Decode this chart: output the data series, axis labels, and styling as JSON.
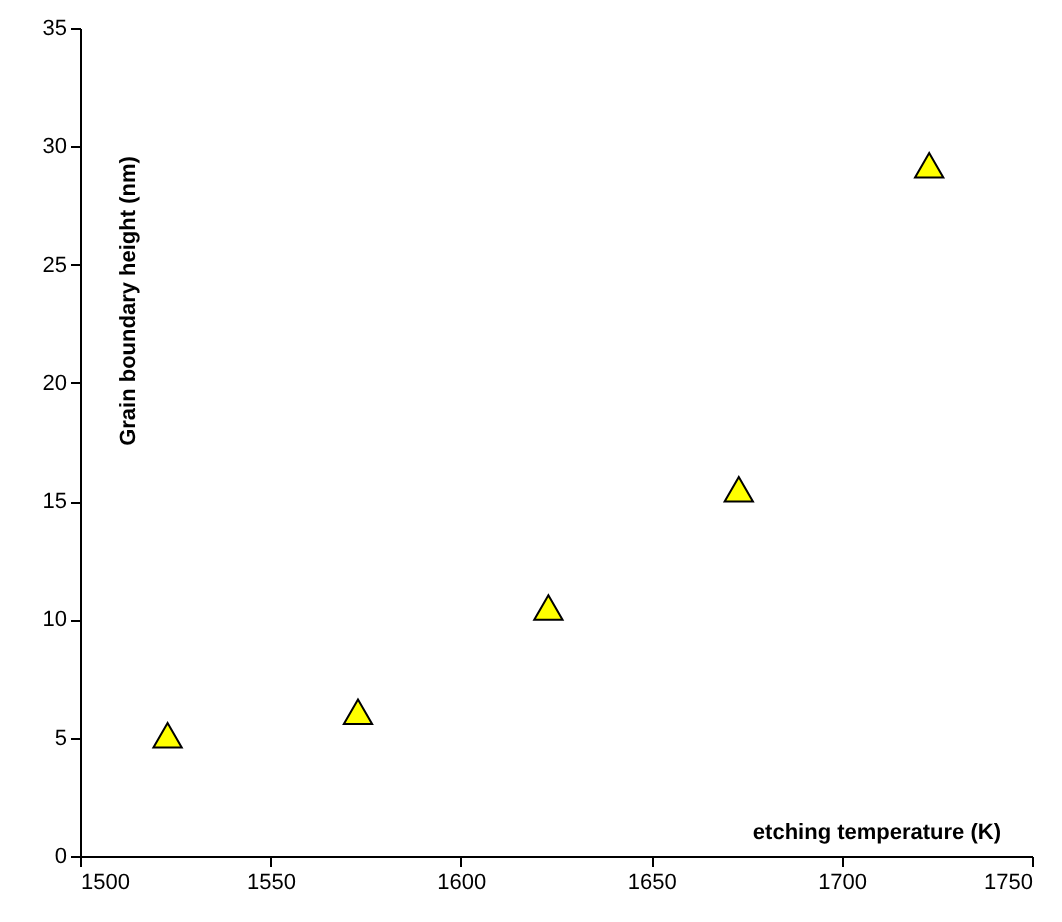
{
  "chart_data": {
    "type": "scatter",
    "xlabel": "etching temperature (K)",
    "ylabel": "Grain boundary height (nm)",
    "x": [
      1523,
      1573,
      1623,
      1673,
      1723
    ],
    "series": [
      {
        "color": "#ffff00",
        "values": [
          5.1,
          6.1,
          10.5,
          15.5,
          29.2
        ]
      }
    ],
    "xlim": [
      1500,
      1750
    ],
    "xticks": [
      1500,
      1550,
      1600,
      1650,
      1700,
      1750
    ],
    "ylim": [
      0,
      35
    ],
    "yticks": [
      0,
      5,
      10,
      15,
      20,
      25,
      30,
      35
    ],
    "grid": false,
    "marker": "triangle"
  }
}
